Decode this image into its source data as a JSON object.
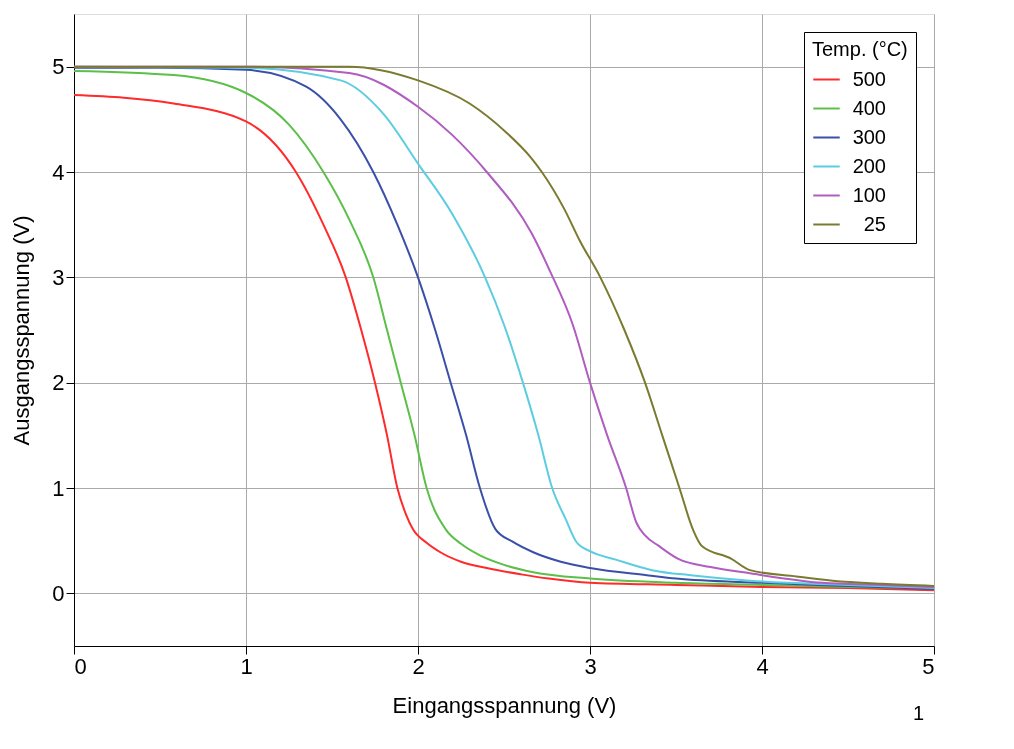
{
  "chart_data": {
    "type": "line",
    "xlabel": "Eingangsspannung (V)",
    "ylabel": "Ausgangsspannung (V)",
    "legend_title": "Temp. (°C)",
    "legend": "top right",
    "grid": true,
    "line_style": "solid",
    "marker": "none",
    "xlim": [
      0,
      5
    ],
    "ylim": [
      -0.5,
      5.5
    ],
    "xticks": [
      0,
      1,
      2,
      3,
      4,
      5
    ],
    "yticks": [
      0,
      1,
      2,
      3,
      4,
      5
    ],
    "annotations": [
      "1"
    ],
    "series": [
      {
        "name": "500",
        "color": "#ff2a2a",
        "x": [
          0,
          0.58,
          1,
          1.29,
          1.45,
          1.58,
          1.67,
          1.75,
          1.82,
          1.88,
          1.93,
          1.97,
          2.05,
          2.13,
          2.25,
          2.4,
          2.6,
          2.76,
          3,
          3.5,
          4,
          4.5,
          5
        ],
        "values": [
          4.73,
          4.65,
          4.48,
          4,
          3.5,
          3,
          2.5,
          2,
          1.5,
          1,
          0.75,
          0.61,
          0.48,
          0.39,
          0.3,
          0.24,
          0.18,
          0.14,
          0.1,
          0.08,
          0.06,
          0.05,
          0.03
        ]
      },
      {
        "name": "400",
        "color": "#5cbf4a",
        "x": [
          0,
          0.58,
          1,
          1.25,
          1.45,
          1.6,
          1.74,
          1.82,
          1.9,
          1.98,
          2.05,
          2.16,
          2.25,
          2.36,
          2.5,
          2.67,
          3,
          3.5,
          4,
          4.5,
          5
        ],
        "values": [
          4.96,
          4.92,
          4.75,
          4.45,
          4,
          3.55,
          3,
          2.5,
          2,
          1.5,
          1,
          0.61,
          0.47,
          0.36,
          0.27,
          0.2,
          0.14,
          0.1,
          0.08,
          0.06,
          0.05
        ]
      },
      {
        "name": "300",
        "color": "#3a4fa8",
        "x": [
          0,
          0.5,
          1,
          1.35,
          1.55,
          1.74,
          1.88,
          2,
          2.1,
          2.19,
          2.28,
          2.36,
          2.45,
          2.55,
          2.67,
          2.83,
          3,
          3.34,
          3.5,
          4,
          4.5,
          5
        ],
        "values": [
          4.99,
          4.99,
          4.97,
          4.81,
          4.5,
          4,
          3.5,
          3,
          2.5,
          2,
          1.5,
          1,
          0.61,
          0.49,
          0.39,
          0.3,
          0.24,
          0.17,
          0.14,
          0.1,
          0.07,
          0.04
        ]
      },
      {
        "name": "200",
        "color": "#5ccde0",
        "x": [
          0,
          1,
          1.55,
          1.8,
          2,
          2.2,
          2.39,
          2.5,
          2.61,
          2.7,
          2.78,
          2.86,
          2.92,
          3,
          3.15,
          3.36,
          3.6,
          3.93,
          4.5,
          5
        ],
        "values": [
          5,
          4.99,
          4.87,
          4.55,
          4.08,
          3.6,
          3,
          2.55,
          2,
          1.5,
          1,
          0.7,
          0.49,
          0.4,
          0.32,
          0.22,
          0.17,
          0.12,
          0.08,
          0.05
        ]
      },
      {
        "name": "100",
        "color": "#b05cc0",
        "x": [
          0,
          0.5,
          1,
          1.6,
          2,
          2.2,
          2.4,
          2.66,
          2.77,
          2.9,
          3,
          3.1,
          3.21,
          3.27,
          3.32,
          3.4,
          3.51,
          3.7,
          3.93,
          4.35,
          4.7,
          5
        ],
        "values": [
          5,
          5,
          5,
          4.94,
          4.62,
          4.35,
          4,
          3.42,
          3.05,
          2.55,
          2,
          1.5,
          1,
          0.67,
          0.55,
          0.45,
          0.33,
          0.25,
          0.19,
          0.1,
          0.08,
          0.06
        ]
      },
      {
        "name": " 25",
        "color": "#7a7a30",
        "x": [
          0,
          0.5,
          1,
          1.6,
          2,
          2.3,
          2.51,
          2.66,
          2.72,
          2.85,
          2.94,
          3.06,
          3.2,
          3.32,
          3.42,
          3.52,
          3.6,
          3.65,
          3.82,
          3.93,
          4.2,
          4.41,
          4.7,
          5
        ],
        "values": [
          5,
          5,
          5,
          5,
          4.87,
          4.65,
          4.38,
          4.13,
          4,
          3.65,
          3.35,
          3,
          2.5,
          2,
          1.5,
          1,
          0.6,
          0.45,
          0.33,
          0.22,
          0.16,
          0.12,
          0.09,
          0.07
        ]
      }
    ]
  }
}
